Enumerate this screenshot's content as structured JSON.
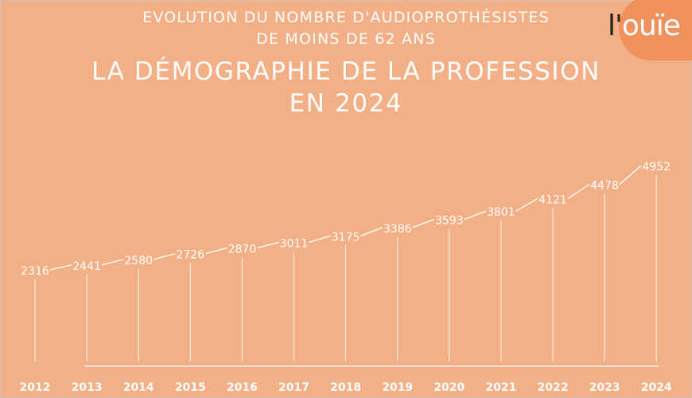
{
  "header": {
    "subtitle_line1": "EVOLUTION DU NOMBRE D'AUDIOPROTHÉSISTES",
    "subtitle_line2": "DE MOINS DE 62 ANS",
    "title_line1": "LA DÉMOGRAPHIE DE LA PROFESSION",
    "title_line2": "EN 2024"
  },
  "logo": {
    "text_prefix": "l'",
    "text_main": "ouïe"
  },
  "colors": {
    "background": "#F3AF85",
    "accent": "#F0925E",
    "text": "#FFFFFF"
  },
  "chart_data": {
    "type": "line",
    "title": "LA DÉMOGRAPHIE DE LA PROFESSION EN 2024",
    "subtitle": "EVOLUTION DU NOMBRE D'AUDIOPROTHÉSISTES DE MOINS DE 62 ANS",
    "categories": [
      "2012",
      "2013",
      "2014",
      "2015",
      "2016",
      "2017",
      "2018",
      "2019",
      "2020",
      "2021",
      "2022",
      "2023",
      "2024"
    ],
    "series": [
      {
        "values": [
          2316,
          2441,
          2580,
          2726,
          2870,
          3011,
          3175,
          3386,
          3593,
          3801,
          4121,
          4478,
          4952
        ]
      }
    ],
    "data_labels": [
      "2316",
      "2441",
      "2580",
      "2726",
      "2870",
      "3011",
      "3175",
      "3386",
      "3593",
      "3801",
      "4121",
      "4478",
      "4952"
    ],
    "grid": false,
    "legend": "none"
  }
}
